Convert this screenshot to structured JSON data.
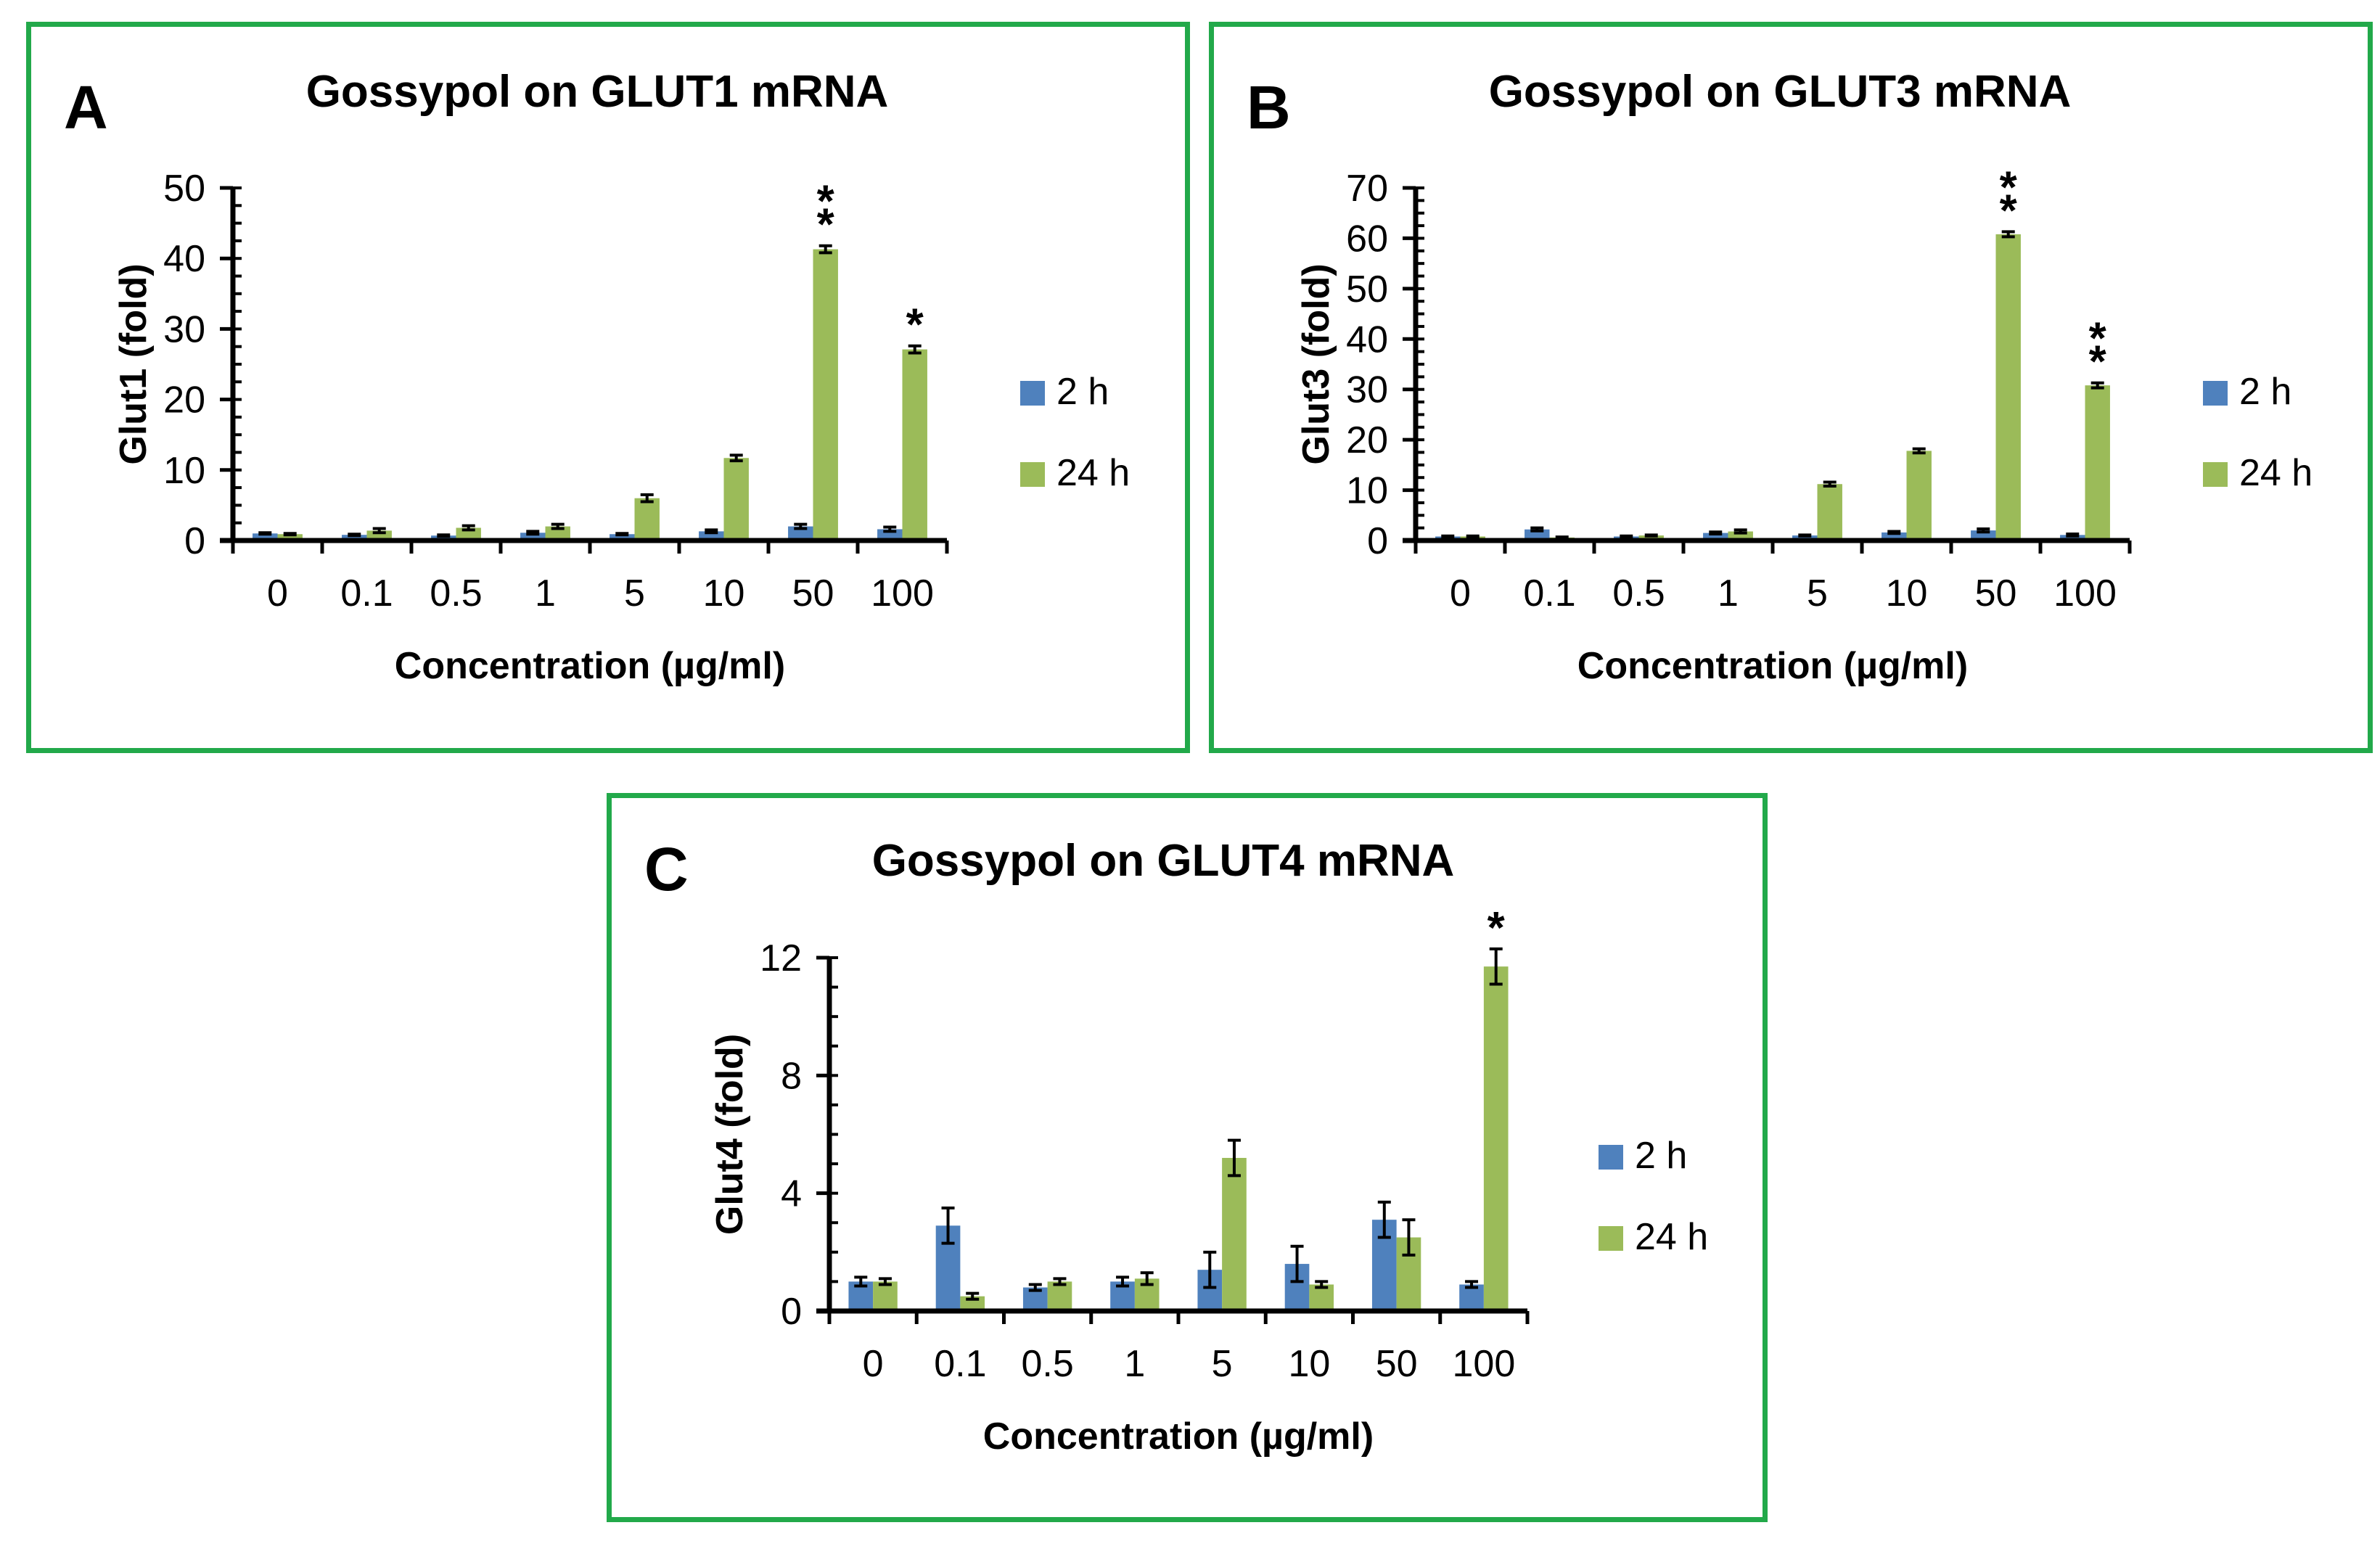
{
  "series_colors": {
    "2 h": "#4f81bd",
    "24 h": "#9bbb59"
  },
  "chart_data": [
    {
      "type": "bar",
      "panel_label": "A",
      "title": "Gossypol on GLUT1 mRNA",
      "xlabel": "Concentration (µg/ml)",
      "ylabel": "Glut1 (fold)",
      "ylim": [
        0,
        50
      ],
      "yticks": [
        "0",
        "10",
        "20",
        "30",
        "40",
        "50"
      ],
      "ytick_values": [
        0,
        10,
        20,
        30,
        40,
        50
      ],
      "minor_step": 2.5,
      "categories": [
        "0",
        "0.1",
        "0.5",
        "1",
        "5",
        "10",
        "50",
        "100"
      ],
      "series": [
        {
          "name": "2 h",
          "values": [
            1,
            0.8,
            0.7,
            1.1,
            0.9,
            1.3,
            2.0,
            1.6
          ],
          "errors": [
            0.1,
            0.1,
            0.1,
            0.2,
            0.1,
            0.2,
            0.3,
            0.3
          ]
        },
        {
          "name": "24 h",
          "values": [
            0.9,
            1.4,
            1.8,
            2.0,
            6.0,
            11.7,
            41.3,
            27.1
          ],
          "errors": [
            0.1,
            0.3,
            0.3,
            0.3,
            0.5,
            0.4,
            0.5,
            0.5
          ]
        }
      ],
      "annotations": [
        {
          "category": "50",
          "series": "24 h",
          "text": "**"
        },
        {
          "category": "100",
          "series": "24 h",
          "text": "*"
        }
      ],
      "legend": [
        "2 h",
        "24 h"
      ]
    },
    {
      "type": "bar",
      "panel_label": "B",
      "title": "Gossypol on GLUT3 mRNA",
      "xlabel": "Concentration (µg/ml)",
      "ylabel": "Glut3 (fold)",
      "ylim": [
        0,
        70
      ],
      "yticks": [
        "0",
        "10",
        "20",
        "30",
        "40",
        "50",
        "60",
        "70"
      ],
      "ytick_values": [
        0,
        10,
        20,
        30,
        40,
        50,
        60,
        70
      ],
      "minor_step": 2.5,
      "categories": [
        "0",
        "0.1",
        "0.5",
        "1",
        "5",
        "10",
        "50",
        "100"
      ],
      "series": [
        {
          "name": "2 h",
          "values": [
            0.8,
            2.2,
            0.8,
            1.5,
            1.0,
            1.6,
            2.0,
            1.1
          ],
          "errors": [
            0.1,
            0.3,
            0.1,
            0.2,
            0.1,
            0.2,
            0.3,
            0.2
          ]
        },
        {
          "name": "24 h",
          "values": [
            0.8,
            0.6,
            1.0,
            1.8,
            11.2,
            17.8,
            60.8,
            30.8
          ],
          "errors": [
            0.1,
            0.1,
            0.1,
            0.3,
            0.4,
            0.4,
            0.5,
            0.5
          ]
        }
      ],
      "annotations": [
        {
          "category": "50",
          "series": "24 h",
          "text": "**"
        },
        {
          "category": "100",
          "series": "24 h",
          "text": "**"
        }
      ],
      "legend": [
        "2 h",
        "24 h"
      ]
    },
    {
      "type": "bar",
      "panel_label": "C",
      "title": "Gossypol on GLUT4 mRNA",
      "xlabel": "Concentration (µg/ml)",
      "ylabel": "Glut4 (fold)",
      "ylim": [
        0,
        12
      ],
      "yticks": [
        "0",
        "4",
        "8",
        "12"
      ],
      "ytick_values": [
        0,
        4,
        8,
        12
      ],
      "minor_step": 1,
      "categories": [
        "0",
        "0.1",
        "0.5",
        "1",
        "5",
        "10",
        "50",
        "100"
      ],
      "series": [
        {
          "name": "2 h",
          "values": [
            1.0,
            2.9,
            0.8,
            1.0,
            1.4,
            1.6,
            3.1,
            0.9
          ],
          "errors": [
            0.15,
            0.6,
            0.1,
            0.15,
            0.6,
            0.6,
            0.6,
            0.1
          ]
        },
        {
          "name": "24 h",
          "values": [
            1.0,
            0.5,
            1.0,
            1.1,
            5.2,
            0.9,
            2.5,
            11.7
          ],
          "errors": [
            0.1,
            0.1,
            0.1,
            0.2,
            0.6,
            0.1,
            0.6,
            0.6
          ]
        }
      ],
      "annotations": [
        {
          "category": "100",
          "series": "24 h",
          "text": "*"
        }
      ],
      "legend": [
        "2 h",
        "24 h"
      ]
    }
  ]
}
